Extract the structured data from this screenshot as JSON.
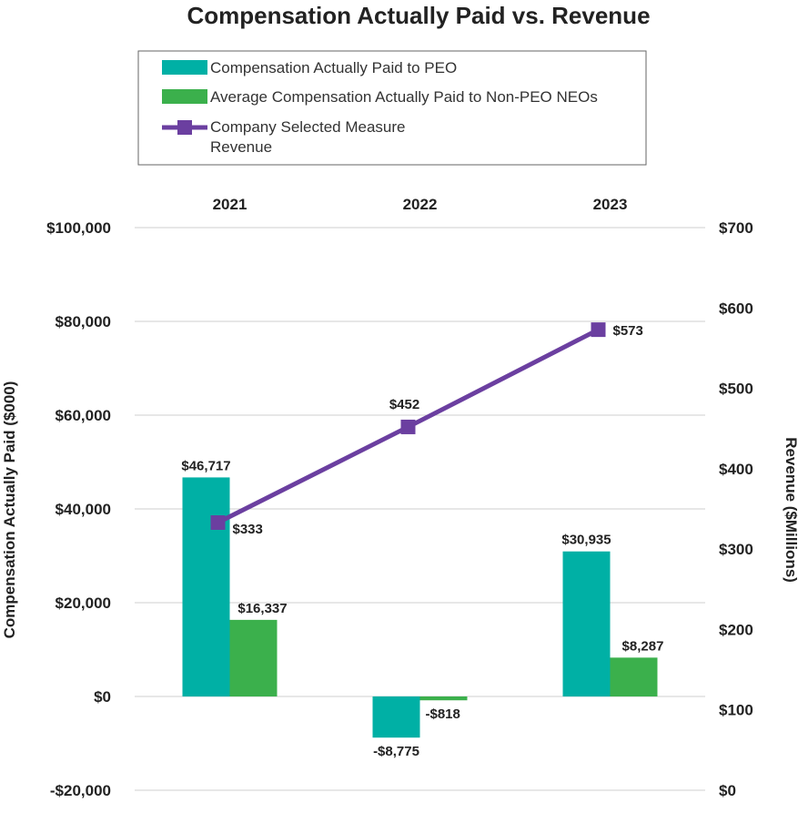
{
  "chart_data": {
    "type": "bar",
    "title": "Compensation Actually Paid vs. Revenue",
    "categories": [
      "2021",
      "2022",
      "2023"
    ],
    "ylabel": "Compensation Actually Paid ($000)",
    "ylabel_right": "Revenue ($Millions)",
    "ylim": [
      -20000,
      100000
    ],
    "ylim_right": [
      0,
      700
    ],
    "yticks": [
      -20000,
      0,
      20000,
      40000,
      60000,
      80000,
      100000
    ],
    "ytick_labels": [
      "-$20,000",
      "$0",
      "$20,000",
      "$40,000",
      "$60,000",
      "$80,000",
      "$100,000"
    ],
    "yticks_right": [
      0,
      100,
      200,
      300,
      400,
      500,
      600,
      700
    ],
    "ytick_labels_right": [
      "$0",
      "$100",
      "$200",
      "$300",
      "$400",
      "$500",
      "$600",
      "$700"
    ],
    "grid": true,
    "legend_position": "top",
    "series": [
      {
        "name": "Compensation Actually Paid to PEO",
        "kind": "bar",
        "axis": "left",
        "color": "#00b0a5",
        "values": [
          46717,
          -8775,
          30935
        ],
        "labels": [
          "$46,717",
          "-$8,775",
          "$30,935"
        ]
      },
      {
        "name": "Average Compensation Actually Paid to Non-PEO NEOs",
        "kind": "bar",
        "axis": "left",
        "color": "#3bb04c",
        "values": [
          16337,
          -818,
          8287
        ],
        "labels": [
          "$16,337",
          "-$818",
          "$8,287"
        ]
      },
      {
        "name": "Company Selected Measure\nRevenue",
        "legend_lines": [
          "Company Selected Measure",
          "Revenue"
        ],
        "kind": "line",
        "marker": "square",
        "axis": "right",
        "color": "#6b3fa0",
        "values": [
          333,
          452,
          573
        ],
        "labels": [
          "$333",
          "$452",
          "$573"
        ]
      }
    ]
  }
}
